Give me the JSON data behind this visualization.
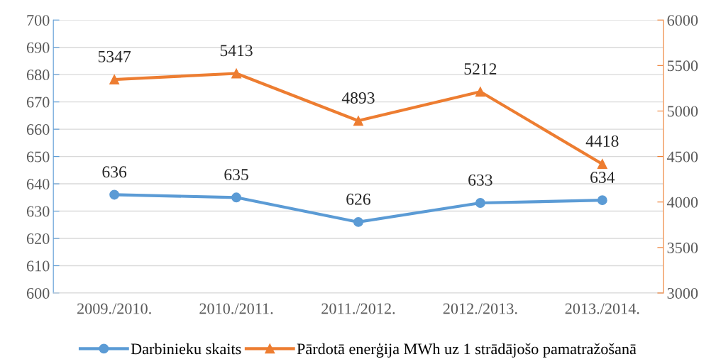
{
  "chart_data": {
    "type": "line",
    "categories": [
      "2009./2010.",
      "2010./2011.",
      "2011./2012.",
      "2012./2013.",
      "2013./2014."
    ],
    "series": [
      {
        "name": "Darbinieku skaits",
        "color": "#5b9bd5",
        "values": [
          636,
          635,
          626,
          633,
          634
        ],
        "marker": "circle"
      },
      {
        "name": "Pārdotā enerģija MWh uz 1 strādājošo pamatražošanā",
        "color": "#ed7d31",
        "values": [
          5347,
          5413,
          4893,
          5212,
          4418
        ],
        "marker": "triangle",
        "axis": "y2"
      }
    ],
    "ylim": [
      600,
      700
    ],
    "yticks": [
      600,
      610,
      620,
      630,
      640,
      650,
      660,
      670,
      680,
      690,
      700
    ],
    "y2lim": [
      3000,
      6000
    ],
    "y2ticks": [
      3000,
      3500,
      4000,
      4500,
      5000,
      5500,
      6000
    ],
    "grid": "y",
    "legend": "bottom",
    "data_labels": true
  }
}
